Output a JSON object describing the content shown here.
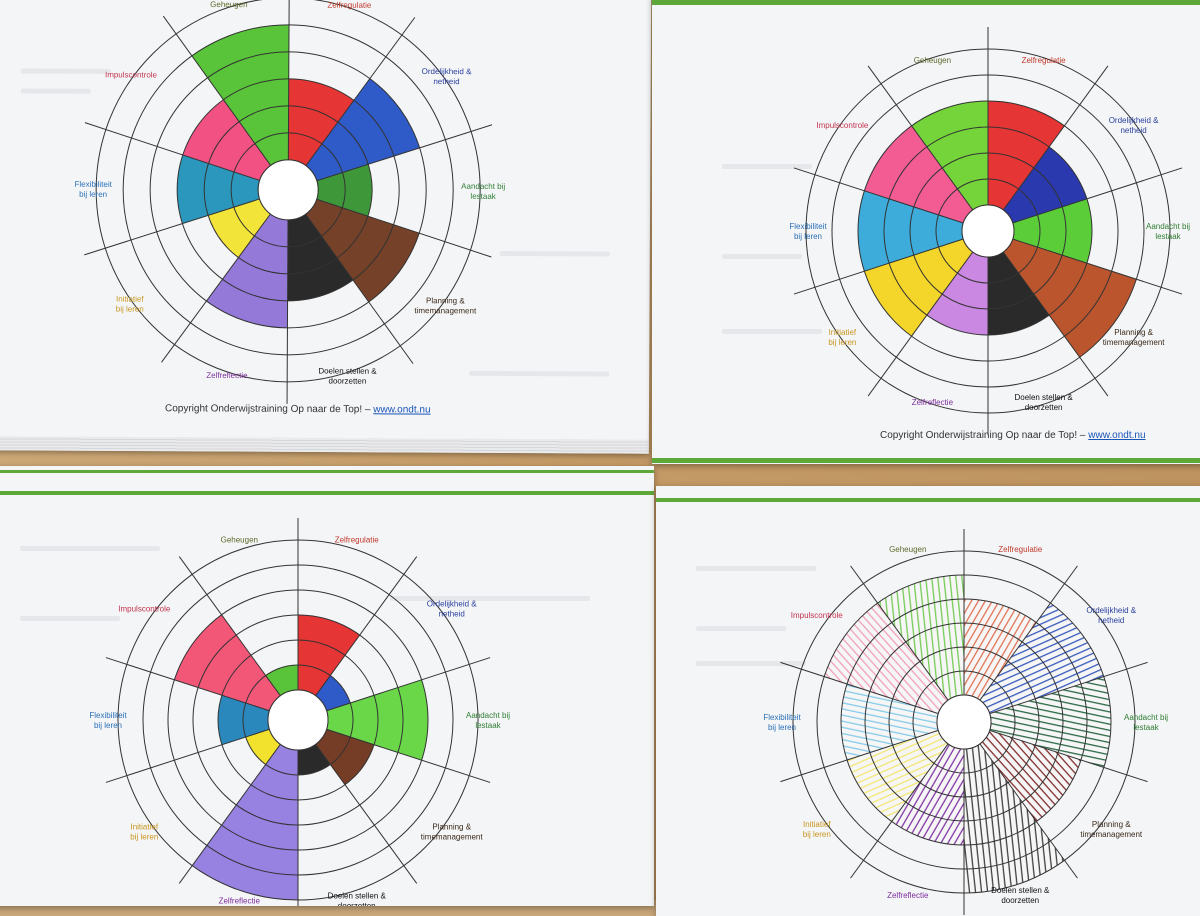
{
  "copyright": {
    "text": "Copyright Onderwijstraining Op naar de Top! – ",
    "link": "www.ondt.nu"
  },
  "categories": [
    {
      "key": "zelfregulatie",
      "label": [
        "Zelfregulatie"
      ],
      "color": "#c0392b"
    },
    {
      "key": "ordelijkheid",
      "label": [
        "Ordelijkheid &",
        "netheid"
      ],
      "color": "#2a3f9e"
    },
    {
      "key": "aandacht",
      "label": [
        "Aandacht bij",
        "lestaak"
      ],
      "color": "#2f7d32"
    },
    {
      "key": "planning",
      "label": [
        "Planning &",
        "timemanagement"
      ],
      "color": "#3a2a1a"
    },
    {
      "key": "doelen",
      "label": [
        "Doelen stellen &",
        "doorzetten"
      ],
      "color": "#111111"
    },
    {
      "key": "zelfreflectie",
      "label": [
        "Zelfreflectie"
      ],
      "color": "#7b2d9b"
    },
    {
      "key": "initiatief",
      "label": [
        "Initiatief",
        "bij leren"
      ],
      "color": "#c8961e"
    },
    {
      "key": "flexibiliteit",
      "label": [
        "Flexibiliteit",
        "bij leren"
      ],
      "color": "#2a6fb5"
    },
    {
      "key": "impulscontrole",
      "label": [
        "Impulscontrole"
      ],
      "color": "#c2344f"
    },
    {
      "key": "geheugen",
      "label": [
        "Geheugen"
      ],
      "color": "#5a6b2a"
    }
  ],
  "segment_colors": {
    "zelfregulatie": "#e32626",
    "ordelijkheid": "#1f4fc4",
    "aandacht": "#38b02a",
    "planning": "#7a3a1e",
    "doelen": "#1a1a1a",
    "zelfreflectie": "#8c6fd6",
    "initiatief": "#f2e22a",
    "flexibiliteit": "#1b8fb8",
    "impulscontrole": "#f0457a",
    "geheugen": "#4cbf2a"
  },
  "wheels": [
    {
      "name": "top-left",
      "scores": {
        "zelfregulatie": 3,
        "ordelijkheid": 4,
        "aandacht": 2,
        "planning": 4,
        "doelen": 3,
        "zelfreflectie": 4,
        "initiatief": 2,
        "flexibiliteit": 3,
        "impulscontrole": 3,
        "geheugen": 5
      },
      "segment_colors": {
        "zelfreflectie": "#8c6fd6",
        "planning": "#6b3318",
        "aandacht": "#2f8f2a"
      }
    },
    {
      "name": "top-right",
      "scores": {
        "zelfregulatie": 4,
        "ordelijkheid": 3,
        "aandacht": 3,
        "planning": 5,
        "doelen": 3,
        "zelfreflectie": 3,
        "initiatief": 4,
        "flexibiliteit": 4,
        "impulscontrole": 4,
        "geheugen": 4
      },
      "segment_colors": {
        "ordelijkheid": "#1a2aa8",
        "aandacht": "#4ec92a",
        "planning": "#b5481e",
        "zelfreflectie": "#c77fe0",
        "initiatief": "#f3d21a",
        "flexibiliteit": "#2ea6d8",
        "impulscontrole": "#f2508a",
        "geheugen": "#69d12a"
      }
    },
    {
      "name": "bottom-left",
      "scores": {
        "zelfregulatie": 3,
        "ordelijkheid": 1,
        "aandacht": 4,
        "planning": 2,
        "doelen": 1,
        "zelfreflectie": 6,
        "initiatief": 1,
        "flexibiliteit": 2,
        "impulscontrole": 4,
        "geheugen": 1
      },
      "segment_colors": {
        "aandacht": "#5fd43a",
        "planning": "#6b2e16",
        "zelfreflectie": "#8f78e0",
        "initiatief": "#f1e01e",
        "flexibiliteit": "#1b7fb8",
        "impulscontrole": "#f24a6e"
      }
    },
    {
      "name": "bottom-right",
      "hatched": true,
      "scores": {
        "zelfregulatie": 4,
        "ordelijkheid": 5,
        "aandacht": 5,
        "planning": 4,
        "doelen": 6,
        "zelfreflectie": 4,
        "initiatief": 4,
        "flexibiliteit": 4,
        "impulscontrole": 5,
        "geheugen": 5
      },
      "segment_colors": {
        "zelfregulatie": "#e06a4a",
        "ordelijkheid": "#2a4fb8",
        "aandacht": "#1e5e3a",
        "planning": "#7a1e1e",
        "doelen": "#333333",
        "zelfreflectie": "#7a2a9e",
        "initiatief": "#f2e66a",
        "flexibiliteit": "#7fc8e8",
        "impulscontrole": "#f29ab8",
        "geheugen": "#6cc84a"
      }
    }
  ]
}
